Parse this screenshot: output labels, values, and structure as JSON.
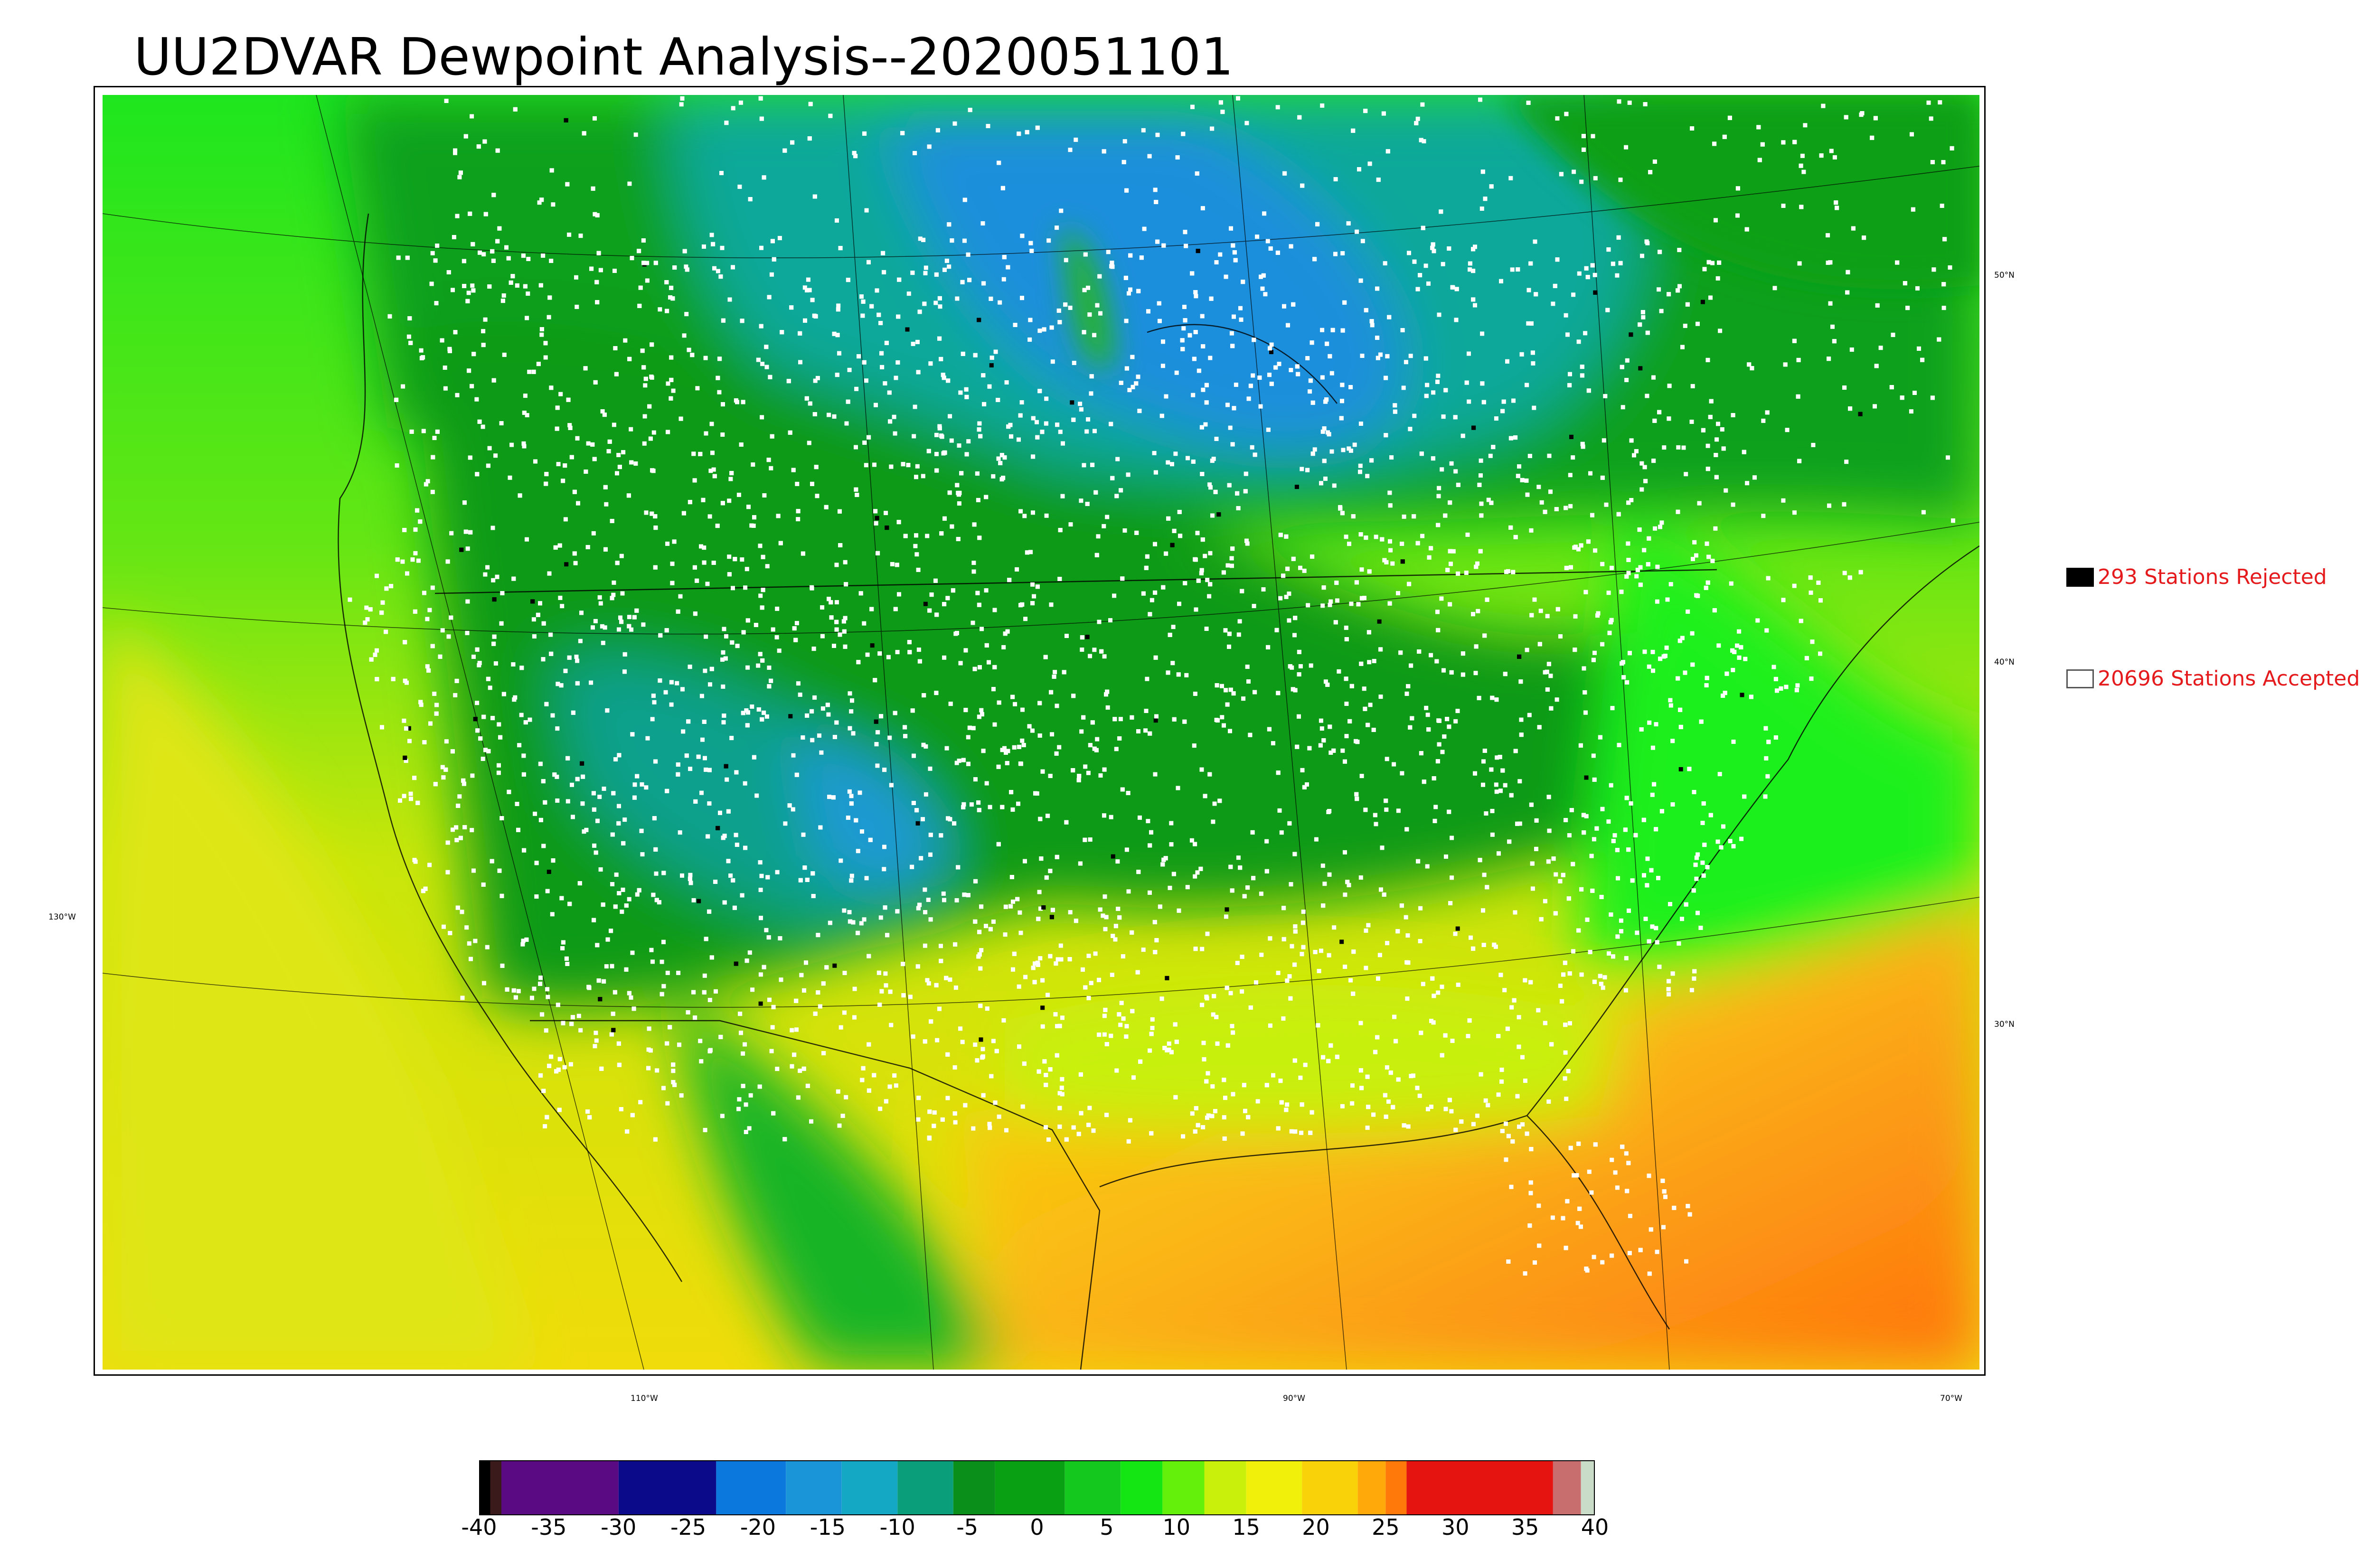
{
  "title": "UU2DVAR Dewpoint Analysis--2020051101",
  "map": {
    "lon_labels": [
      "130°W",
      "110°W",
      "90°W",
      "70°W"
    ],
    "lat_labels": [
      "50°N",
      "40°N",
      "30°N"
    ],
    "colors": {
      "land_green": "#22c81e",
      "dark_green": "#0a9a14",
      "teal": "#0a9f8c",
      "blue": "#1a8fd4",
      "yellow_green": "#b4e60a",
      "yellow": "#f0dc0a",
      "orange": "#fba014",
      "deep_orange": "#ff7010",
      "bright_green": "#19f019"
    }
  },
  "legend": {
    "rejected_label": "293 Stations Rejected",
    "accepted_label": "20696 Stations Accepted",
    "rejected_color": "#000000",
    "accepted_color": "#ffffff",
    "text_color": "#e41a1c"
  },
  "colorbar": {
    "ticks": [
      "-40",
      "-35",
      "-30",
      "-25",
      "-20",
      "-15",
      "-10",
      "-5",
      "0",
      "5",
      "10",
      "15",
      "20",
      "25",
      "30",
      "35",
      "40"
    ],
    "min": -40,
    "max": 40,
    "segments": [
      {
        "from": -40,
        "to": -39.2,
        "color": "#000000"
      },
      {
        "from": -39.2,
        "to": -38.4,
        "color": "#3a1a1a"
      },
      {
        "from": -38.4,
        "to": -30,
        "color": "#5a0a82"
      },
      {
        "from": -30,
        "to": -23,
        "color": "#0a0a8a"
      },
      {
        "from": -23,
        "to": -18,
        "color": "#0a78dc"
      },
      {
        "from": -18,
        "to": -14,
        "color": "#1a96d8"
      },
      {
        "from": -14,
        "to": -10,
        "color": "#14a8c4"
      },
      {
        "from": -10,
        "to": -6,
        "color": "#0a9f7a"
      },
      {
        "from": -6,
        "to": -3,
        "color": "#0a8f1a"
      },
      {
        "from": -3,
        "to": 2,
        "color": "#0aa014"
      },
      {
        "from": 2,
        "to": 6,
        "color": "#14c81e"
      },
      {
        "from": 6,
        "to": 9,
        "color": "#14e614"
      },
      {
        "from": 9,
        "to": 12,
        "color": "#64f00a"
      },
      {
        "from": 12,
        "to": 15,
        "color": "#c8f00a"
      },
      {
        "from": 15,
        "to": 19,
        "color": "#f0f00a"
      },
      {
        "from": 19,
        "to": 23,
        "color": "#fad20a"
      },
      {
        "from": 23,
        "to": 25,
        "color": "#ffaa0a"
      },
      {
        "from": 25,
        "to": 26.5,
        "color": "#ff780a"
      },
      {
        "from": 26.5,
        "to": 37,
        "color": "#e61410"
      },
      {
        "from": 37,
        "to": 39,
        "color": "#c86e6e"
      },
      {
        "from": 39,
        "to": 40,
        "color": "#c8dcc8"
      }
    ]
  }
}
